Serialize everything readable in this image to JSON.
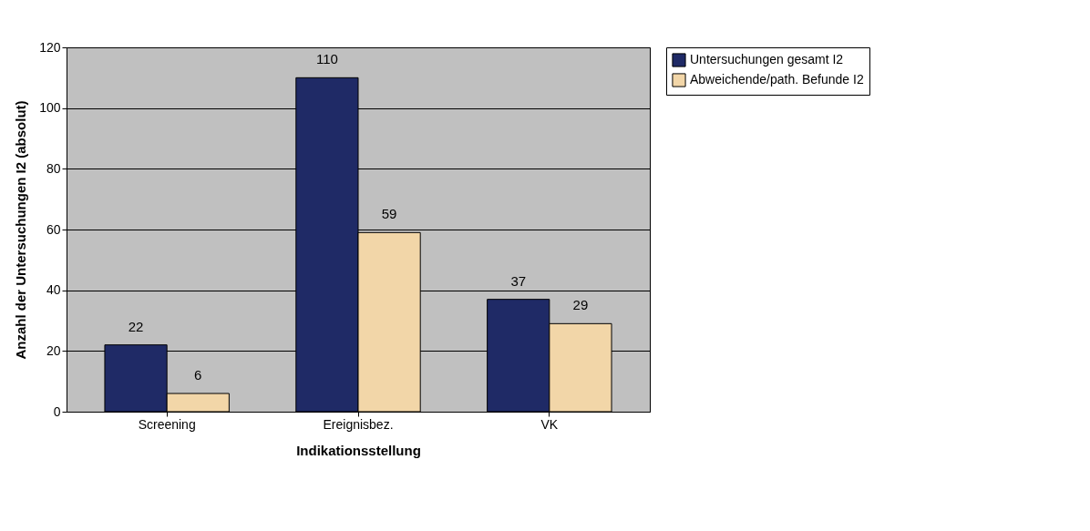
{
  "chart_data": {
    "type": "bar",
    "categories": [
      "Screening",
      "Ereignisbez.",
      "VK"
    ],
    "series": [
      {
        "name": "Untersuchungen gesamt I2",
        "color": "#1f2a66",
        "values": [
          22,
          110,
          37
        ]
      },
      {
        "name": "Abweichende/path. Befunde I2",
        "color": "#f2d6a8",
        "values": [
          6,
          59,
          29
        ]
      }
    ],
    "xlabel": "Indikationsstellung",
    "ylabel": "Anzahl der Untersuchungen I2 (absolut)",
    "ylim": [
      0,
      120
    ],
    "yticks": [
      0,
      20,
      40,
      60,
      80,
      100,
      120
    ],
    "grid": "y",
    "legend": "right",
    "data_labels": true
  }
}
